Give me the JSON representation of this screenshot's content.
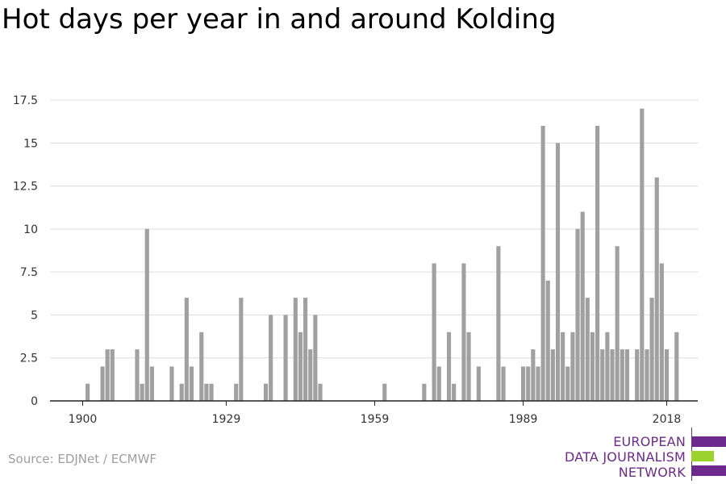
{
  "title": "Hot days per year in and around Kolding",
  "source": "Source: EDJNet / ECMWF",
  "logo": {
    "line1": "EUROPEAN",
    "line2": "DATA JOURNALISM",
    "line3": "NETWORK",
    "color_purple": "#6c2a8c",
    "color_green": "#9bd22d"
  },
  "chart_data": {
    "type": "bar",
    "x": [
      1901,
      1904,
      1905,
      1906,
      1911,
      1912,
      1913,
      1914,
      1918,
      1920,
      1921,
      1922,
      1924,
      1925,
      1926,
      1931,
      1932,
      1937,
      1938,
      1941,
      1943,
      1944,
      1945,
      1946,
      1947,
      1948,
      1961,
      1969,
      1971,
      1972,
      1974,
      1975,
      1977,
      1978,
      1980,
      1984,
      1985,
      1989,
      1990,
      1991,
      1992,
      1993,
      1994,
      1995,
      1996,
      1997,
      1998,
      1999,
      2000,
      2001,
      2002,
      2003,
      2004,
      2005,
      2006,
      2007,
      2008,
      2009,
      2010,
      2012,
      2013,
      2014,
      2015,
      2016,
      2017,
      2018,
      2020
    ],
    "values": [
      1,
      2,
      3,
      3,
      3,
      1,
      10,
      2,
      2,
      1,
      6,
      2,
      4,
      1,
      1,
      1,
      6,
      1,
      5,
      5,
      6,
      4,
      6,
      3,
      5,
      1,
      1,
      1,
      8,
      2,
      4,
      1,
      8,
      4,
      2,
      9,
      2,
      2,
      2,
      3,
      2,
      16,
      7,
      3,
      15,
      4,
      2,
      4,
      10,
      11,
      6,
      4,
      16,
      3,
      4,
      3,
      9,
      3,
      3,
      3,
      17,
      3,
      6,
      13,
      8,
      3,
      4
    ],
    "xticks": [
      "1900",
      "1929",
      "1959",
      "1989",
      "2018"
    ],
    "ytick_labels": [
      "0",
      "2.5",
      "5",
      "7.5",
      "10",
      "12.5",
      "15",
      "17.5"
    ],
    "xlim": [
      1900,
      2018
    ],
    "ylim": [
      0,
      17.5
    ],
    "bar_color": "#a0a0a0",
    "grid": true
  }
}
